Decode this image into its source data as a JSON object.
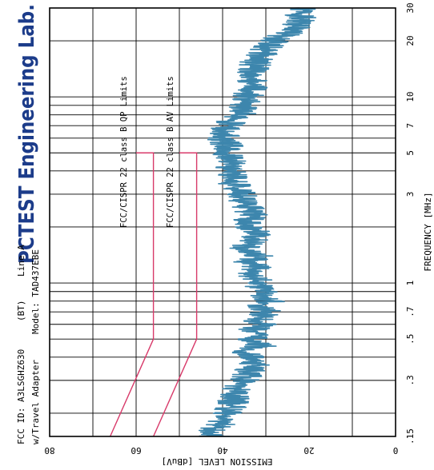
{
  "chart_data": {
    "type": "line",
    "orientation": "rotated-90-cw",
    "header": {
      "lab": "PCTEST Engineering Lab.",
      "line1": "FCC ID: A3LSGHZ630",
      "line1b": "(BT)",
      "line1c": "Line A",
      "line2": "w/Travel Adapter",
      "line2b": "Model: TAD437EBE"
    },
    "xlabel": "FREQUENCY [MHz]",
    "ylabel": "EMISSION LEVEL [dBuV]",
    "x_scale": "log",
    "xlim": [
      0.15,
      30
    ],
    "ylim": [
      0,
      80
    ],
    "x_ticks": [
      {
        "value": 0.15,
        "label": ".15"
      },
      {
        "value": 0.3,
        "label": ".3"
      },
      {
        "value": 0.5,
        "label": ".5"
      },
      {
        "value": 0.7,
        "label": ".7"
      },
      {
        "value": 1,
        "label": "1"
      },
      {
        "value": 3,
        "label": "3"
      },
      {
        "value": 5,
        "label": "5"
      },
      {
        "value": 7,
        "label": "7"
      },
      {
        "value": 10,
        "label": "10"
      },
      {
        "value": 20,
        "label": "20"
      },
      {
        "value": 30,
        "label": "30"
      }
    ],
    "y_ticks": [
      {
        "value": 0,
        "label": "0"
      },
      {
        "value": 20,
        "label": "20"
      },
      {
        "value": 40,
        "label": "40"
      },
      {
        "value": 60,
        "label": "60"
      },
      {
        "value": 80,
        "label": "80"
      }
    ],
    "limit_lines": [
      {
        "name": "FCC/CISPR 22 class B QP Limits",
        "x": [
          0.15,
          0.5,
          5,
          5
        ],
        "y": [
          66,
          56,
          56,
          60
        ]
      },
      {
        "name": "FCC/CISPR 22 class B AV Limits",
        "x": [
          0.15,
          0.5,
          5,
          5
        ],
        "y": [
          56,
          46,
          46,
          50
        ]
      }
    ],
    "series": [
      {
        "x": [
          0.15,
          0.16,
          0.17,
          0.18,
          0.2,
          0.22,
          0.25,
          0.28,
          0.3,
          0.33,
          0.36,
          0.4,
          0.43,
          0.46,
          0.5,
          0.53,
          0.56,
          0.6,
          0.65,
          0.7,
          0.75,
          0.8,
          0.85,
          0.9,
          0.95,
          1.0,
          1.1,
          1.2,
          1.3,
          1.4,
          1.5,
          1.7,
          1.9,
          2.1,
          2.3,
          2.5,
          2.7,
          3.0,
          3.3,
          3.6,
          4.0,
          4.5,
          5.0,
          5.5,
          6.0,
          7.0,
          8.0,
          9.0,
          10.0,
          12.0,
          14.0,
          16.0,
          18.0,
          20.0,
          22.0,
          24.0,
          26.0,
          28.0,
          30.0
        ],
        "y": [
          42,
          43,
          41,
          40,
          39,
          38,
          37,
          36,
          35,
          34,
          33,
          32,
          36,
          31,
          34,
          30,
          33,
          31,
          32,
          30,
          31,
          29,
          31,
          30,
          32,
          31,
          33,
          32,
          34,
          32,
          35,
          33,
          32,
          35,
          33,
          34,
          35,
          36,
          37,
          38,
          38,
          38,
          39,
          39,
          40,
          39,
          36,
          35,
          34,
          33,
          33,
          32,
          30,
          28,
          25,
          23,
          22,
          22,
          21
        ]
      }
    ],
    "grid": true,
    "colors": {
      "data": "#3d86ad",
      "limit": "#d83a6a",
      "grid": "#000000",
      "lab_title": "#1c3c8a"
    }
  }
}
